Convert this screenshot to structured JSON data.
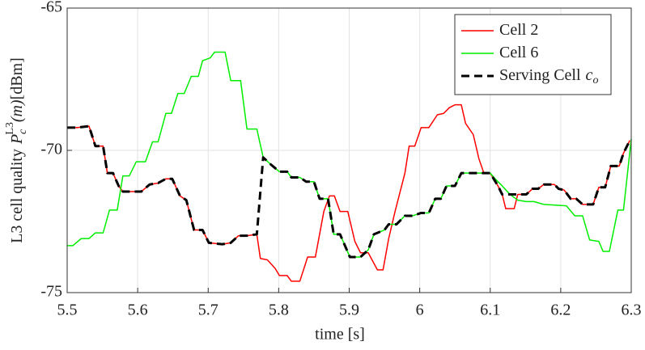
{
  "chart_data": {
    "type": "line",
    "xlabel": "time [s]",
    "ylabel": {
      "text": "L3 cell quality",
      "symbol": "P",
      "sub": "c",
      "sup": "L3",
      "arg": "(m)",
      "unit": "[dBm]"
    },
    "xlim": [
      5.5,
      6.3
    ],
    "xticks": [
      5.5,
      5.6,
      5.7,
      5.8,
      5.9,
      6,
      6.1,
      6.2,
      6.3
    ],
    "ylim": [
      -75,
      -65
    ],
    "yticks": [
      -75,
      -70,
      -65
    ],
    "grid": true,
    "legend": "upper right",
    "series": [
      {
        "name": "Cell 2",
        "color": "#ff0000",
        "line_style": "solid",
        "x": [
          5.5,
          5.514,
          5.531,
          5.54,
          5.551,
          5.557,
          5.565,
          5.573,
          5.579,
          5.594,
          5.605,
          5.617,
          5.629,
          5.64,
          5.649,
          5.66,
          5.669,
          5.68,
          5.692,
          5.701,
          5.72,
          5.732,
          5.743,
          5.755,
          5.769,
          5.774,
          5.784,
          5.795,
          5.801,
          5.812,
          5.818,
          5.83,
          5.841,
          5.852,
          5.864,
          5.872,
          5.879,
          5.887,
          5.898,
          5.908,
          5.916,
          5.927,
          5.94,
          5.948,
          5.956,
          5.965,
          5.979,
          5.985,
          5.993,
          6.002,
          6.013,
          6.025,
          6.034,
          6.042,
          6.05,
          6.059,
          6.065,
          6.076,
          6.084,
          6.091,
          6.1,
          6.111,
          6.117,
          6.122,
          6.134,
          6.139,
          6.151,
          6.16,
          6.168,
          6.176,
          6.191,
          6.197,
          6.205,
          6.214,
          6.222,
          6.231,
          6.246,
          6.254,
          6.263,
          6.271,
          6.283,
          6.289,
          6.298
        ],
        "values": [
          -69.2,
          -69.2,
          -69.15,
          -69.85,
          -69.85,
          -70.8,
          -70.8,
          -71.25,
          -71.45,
          -71.45,
          -71.45,
          -71.2,
          -71.15,
          -71.0,
          -71.0,
          -71.6,
          -71.75,
          -72.8,
          -72.8,
          -73.25,
          -73.3,
          -73.25,
          -73.0,
          -73.0,
          -72.95,
          -73.8,
          -73.85,
          -74.15,
          -74.4,
          -74.4,
          -74.6,
          -74.6,
          -73.75,
          -73.75,
          -72.15,
          -71.6,
          -71.6,
          -72.15,
          -72.15,
          -73.2,
          -73.6,
          -73.6,
          -74.2,
          -74.2,
          -73.1,
          -72.15,
          -70.8,
          -69.85,
          -69.85,
          -69.2,
          -69.2,
          -68.75,
          -68.7,
          -68.5,
          -68.4,
          -68.4,
          -69.05,
          -69.45,
          -70.3,
          -70.8,
          -70.8,
          -71.25,
          -71.55,
          -72.05,
          -72.05,
          -71.55,
          -71.55,
          -71.35,
          -71.35,
          -71.2,
          -71.2,
          -71.35,
          -71.4,
          -71.7,
          -71.7,
          -71.9,
          -71.9,
          -71.3,
          -71.3,
          -70.55,
          -70.55,
          -70.1,
          -69.65
        ]
      },
      {
        "name": "Cell 6",
        "color": "#00ee00",
        "line_style": "solid",
        "x": [
          5.5,
          5.508,
          5.52,
          5.531,
          5.54,
          5.551,
          5.56,
          5.571,
          5.579,
          5.588,
          5.598,
          5.611,
          5.621,
          5.629,
          5.64,
          5.648,
          5.657,
          5.666,
          5.676,
          5.686,
          5.692,
          5.703,
          5.709,
          5.724,
          5.732,
          5.746,
          5.755,
          5.769,
          5.778,
          5.789,
          5.801,
          5.812,
          5.818,
          5.83,
          5.839,
          5.85,
          5.858,
          5.87,
          5.878,
          5.887,
          5.901,
          5.916,
          5.927,
          5.935,
          5.95,
          5.956,
          5.967,
          5.979,
          5.99,
          6.002,
          6.013,
          6.022,
          6.03,
          6.038,
          6.05,
          6.059,
          6.071,
          6.088,
          6.1,
          6.107,
          6.117,
          6.128,
          6.139,
          6.151,
          6.162,
          6.176,
          6.208,
          6.22,
          6.231,
          6.241,
          6.254,
          6.26,
          6.269,
          6.281,
          6.289,
          6.3
        ],
        "values": [
          -73.35,
          -73.35,
          -73.1,
          -73.1,
          -72.9,
          -72.9,
          -72.1,
          -72.1,
          -70.9,
          -70.9,
          -70.4,
          -70.4,
          -69.7,
          -69.7,
          -68.7,
          -68.7,
          -68.0,
          -68.0,
          -67.4,
          -67.4,
          -66.85,
          -66.75,
          -66.55,
          -66.55,
          -67.55,
          -67.55,
          -69.25,
          -69.25,
          -70.25,
          -70.5,
          -70.75,
          -70.75,
          -70.95,
          -70.95,
          -71.1,
          -71.1,
          -71.7,
          -71.7,
          -72.95,
          -72.95,
          -73.75,
          -73.75,
          -73.5,
          -72.95,
          -72.8,
          -72.6,
          -72.6,
          -72.3,
          -72.3,
          -72.2,
          -72.2,
          -71.7,
          -71.7,
          -71.25,
          -71.25,
          -70.8,
          -70.8,
          -70.8,
          -70.8,
          -71.0,
          -71.25,
          -71.55,
          -71.75,
          -71.8,
          -71.8,
          -71.9,
          -71.95,
          -72.3,
          -72.3,
          -73.15,
          -73.2,
          -73.55,
          -73.55,
          -72.1,
          -72.1,
          -69.6
        ]
      },
      {
        "name": "Serving Cell",
        "name_symbol": "c",
        "name_sub": "o",
        "color": "#000000",
        "line_style": "dashed",
        "x": [
          5.5,
          5.514,
          5.531,
          5.54,
          5.551,
          5.557,
          5.565,
          5.573,
          5.579,
          5.605,
          5.617,
          5.629,
          5.64,
          5.649,
          5.66,
          5.669,
          5.68,
          5.692,
          5.701,
          5.72,
          5.732,
          5.743,
          5.755,
          5.769,
          5.778,
          5.789,
          5.801,
          5.812,
          5.818,
          5.83,
          5.839,
          5.85,
          5.858,
          5.87,
          5.878,
          5.887,
          5.901,
          5.916,
          5.927,
          5.935,
          5.95,
          5.956,
          5.967,
          5.979,
          5.99,
          6.002,
          6.013,
          6.022,
          6.03,
          6.038,
          6.05,
          6.059,
          6.088,
          6.1,
          6.111,
          6.117,
          6.139,
          6.151,
          6.16,
          6.168,
          6.176,
          6.191,
          6.197,
          6.205,
          6.214,
          6.222,
          6.231,
          6.246,
          6.254,
          6.263,
          6.271,
          6.283,
          6.289,
          6.298
        ],
        "values": [
          -69.2,
          -69.2,
          -69.15,
          -69.85,
          -69.85,
          -70.8,
          -70.8,
          -71.25,
          -71.45,
          -71.45,
          -71.2,
          -71.15,
          -71.0,
          -71.0,
          -71.6,
          -71.75,
          -72.8,
          -72.8,
          -73.25,
          -73.3,
          -73.25,
          -73.0,
          -73.0,
          -72.95,
          -70.25,
          -70.5,
          -70.75,
          -70.75,
          -70.95,
          -70.95,
          -71.1,
          -71.1,
          -71.7,
          -71.7,
          -72.95,
          -72.95,
          -73.75,
          -73.75,
          -73.5,
          -72.95,
          -72.8,
          -72.6,
          -72.6,
          -72.3,
          -72.3,
          -72.2,
          -72.2,
          -71.7,
          -71.7,
          -71.25,
          -71.25,
          -70.8,
          -70.8,
          -70.8,
          -71.25,
          -71.55,
          -71.55,
          -71.55,
          -71.35,
          -71.35,
          -71.2,
          -71.2,
          -71.35,
          -71.4,
          -71.7,
          -71.7,
          -71.9,
          -71.9,
          -71.3,
          -71.3,
          -70.55,
          -70.55,
          -70.1,
          -69.65
        ]
      }
    ]
  }
}
